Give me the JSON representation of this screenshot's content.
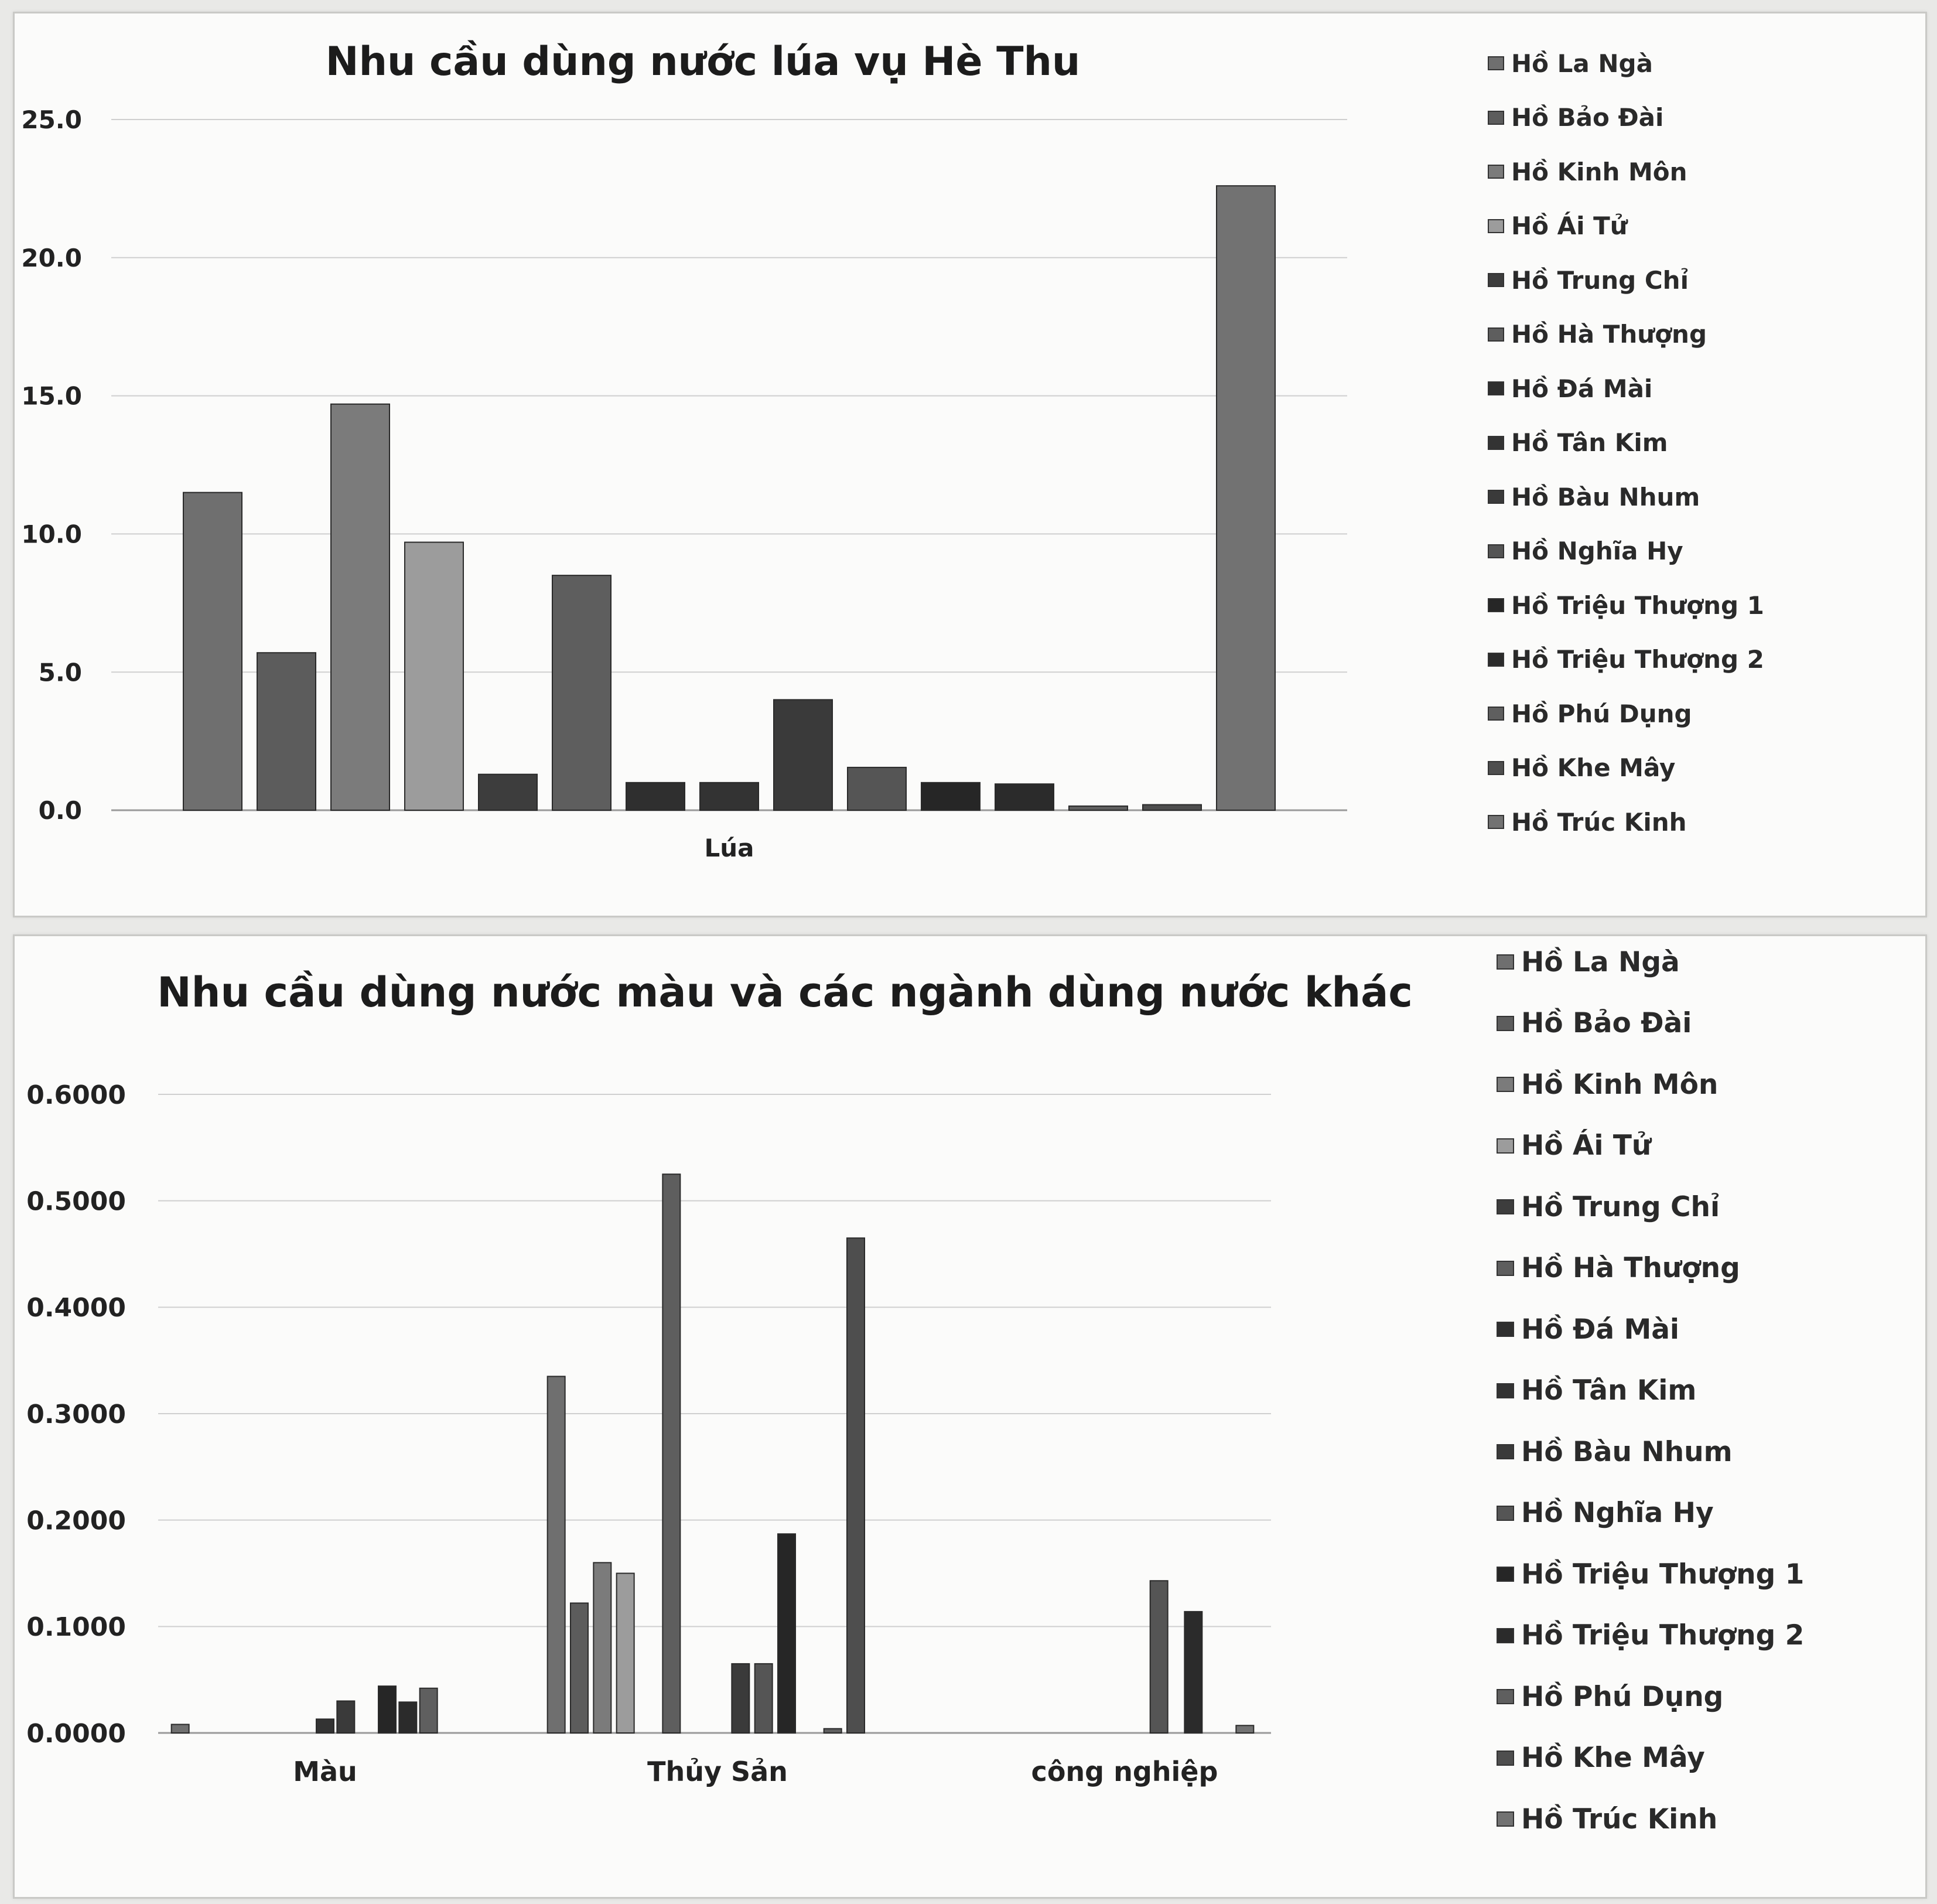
{
  "legend_items": [
    {
      "label": "Hồ La Ngà",
      "color": "#6f6f6f"
    },
    {
      "label": "Hồ Bảo Đài",
      "color": "#5c5c5c"
    },
    {
      "label": "Hồ Kinh Môn",
      "color": "#7b7b7b"
    },
    {
      "label": "Hồ Ái Tử",
      "color": "#9c9c9c"
    },
    {
      "label": "Hồ Trung Chỉ",
      "color": "#3d3d3d"
    },
    {
      "label": "Hồ Hà Thượng",
      "color": "#5e5e5e"
    },
    {
      "label": "Hồ Đá Mài",
      "color": "#2f2f2f"
    },
    {
      "label": "Hồ Tân Kim",
      "color": "#333333"
    },
    {
      "label": "Hồ Bàu Nhum",
      "color": "#3a3a3a"
    },
    {
      "label": "Hồ Nghĩa Hy",
      "color": "#555555"
    },
    {
      "label": "Hồ Triệu Thượng 1",
      "color": "#262626"
    },
    {
      "label": "Hồ Triệu Thượng 2",
      "color": "#2b2b2b"
    },
    {
      "label": "Hồ Phú Dụng",
      "color": "#5f5f5f"
    },
    {
      "label": "Hồ Khe Mây",
      "color": "#4e4e4e"
    },
    {
      "label": "Hồ Trúc Kinh",
      "color": "#727272"
    }
  ],
  "chart_data": [
    {
      "type": "bar",
      "title": "Nhu cầu dùng nước lúa vụ Hè Thu",
      "categories": [
        "Lúa"
      ],
      "ylim": [
        0,
        25
      ],
      "yticks": [
        "25.0",
        "20.0",
        "15.0",
        "10.0",
        "5.0",
        "0.0"
      ],
      "ytick_values": [
        25,
        20,
        15,
        10,
        5,
        0
      ],
      "grid": true,
      "legend": "right",
      "series": [
        {
          "name": "Hồ La Ngà",
          "values": [
            11.5
          ]
        },
        {
          "name": "Hồ Bảo Đài",
          "values": [
            5.7
          ]
        },
        {
          "name": "Hồ Kinh Môn",
          "values": [
            14.7
          ]
        },
        {
          "name": "Hồ Ái Tử",
          "values": [
            9.7
          ]
        },
        {
          "name": "Hồ Trung Chỉ",
          "values": [
            1.3
          ]
        },
        {
          "name": "Hồ Hà Thượng",
          "values": [
            8.5
          ]
        },
        {
          "name": "Hồ Đá Mài",
          "values": [
            1.0
          ]
        },
        {
          "name": "Hồ Tân Kim",
          "values": [
            1.0
          ]
        },
        {
          "name": "Hồ Bàu Nhum",
          "values": [
            4.0
          ]
        },
        {
          "name": "Hồ Nghĩa Hy",
          "values": [
            1.55
          ]
        },
        {
          "name": "Hồ Triệu Thượng 1",
          "values": [
            1.0
          ]
        },
        {
          "name": "Hồ Triệu Thượng 2",
          "values": [
            0.95
          ]
        },
        {
          "name": "Hồ Phú Dụng",
          "values": [
            0.15
          ]
        },
        {
          "name": "Hồ Khe Mây",
          "values": [
            0.2
          ]
        },
        {
          "name": "Hồ Trúc Kinh",
          "values": [
            22.6
          ]
        }
      ]
    },
    {
      "type": "bar",
      "title": "Nhu cầu dùng nước màu và các ngành dùng nước khác",
      "categories": [
        "Màu",
        "Thủy Sản",
        "công nghiệp"
      ],
      "ylim": [
        0,
        0.6
      ],
      "yticks": [
        "0.6000",
        "0.5000",
        "0.4000",
        "0.3000",
        "0.2000",
        "0.1000",
        "0.0000"
      ],
      "ytick_values": [
        0.6,
        0.5,
        0.4,
        0.3,
        0.2,
        0.1,
        0
      ],
      "grid": true,
      "legend": "right",
      "series": [
        {
          "name": "Hồ La Ngà",
          "values": [
            0.008,
            0.335,
            0
          ]
        },
        {
          "name": "Hồ Bảo Đài",
          "values": [
            0,
            0.122,
            0
          ]
        },
        {
          "name": "Hồ Kinh Môn",
          "values": [
            0,
            0.16,
            0
          ]
        },
        {
          "name": "Hồ Ái Tử",
          "values": [
            0,
            0.15,
            0
          ]
        },
        {
          "name": "Hồ Trung Chỉ",
          "values": [
            0,
            0,
            0
          ]
        },
        {
          "name": "Hồ Hà Thượng",
          "values": [
            0,
            0.525,
            0
          ]
        },
        {
          "name": "Hồ Đá Mài",
          "values": [
            0,
            0,
            0
          ]
        },
        {
          "name": "Hồ Tân Kim",
          "values": [
            0.013,
            0,
            0
          ]
        },
        {
          "name": "Hồ Bàu Nhum",
          "values": [
            0.03,
            0.065,
            0
          ]
        },
        {
          "name": "Hồ Nghĩa Hy",
          "values": [
            0,
            0.065,
            0.143
          ]
        },
        {
          "name": "Hồ Triệu Thượng 1",
          "values": [
            0.044,
            0.187,
            0
          ]
        },
        {
          "name": "Hồ Triệu Thượng 2",
          "values": [
            0.029,
            0,
            0.114
          ]
        },
        {
          "name": "Hồ Phú Dụng",
          "values": [
            0.042,
            0.004,
            0
          ]
        },
        {
          "name": "Hồ Khe Mây",
          "values": [
            0,
            0.465,
            0
          ]
        },
        {
          "name": "Hồ Trúc Kinh",
          "values": [
            0,
            0,
            0.007
          ]
        }
      ]
    }
  ]
}
